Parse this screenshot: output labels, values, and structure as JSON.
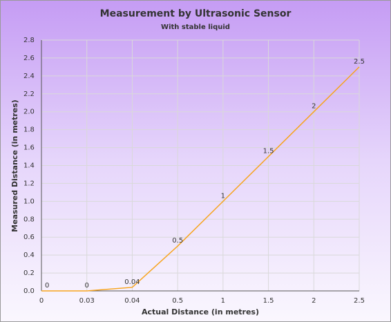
{
  "chart_data": {
    "type": "line",
    "title": "Measurement by Ultrasonic Sensor",
    "subtitle": "With stable liquid",
    "x_label": "Actual Distance (in metres)",
    "y_label": "Measured Distance (in metres)",
    "categories": [
      "0",
      "0.03",
      "0.04",
      "0.5",
      "1",
      "1.5",
      "2",
      "2.5"
    ],
    "values": [
      0,
      0,
      0.04,
      0.5,
      1,
      1.5,
      2,
      2.5
    ],
    "color": "#f7a41d",
    "ylim": [
      0,
      2.8
    ],
    "yticks": [
      {
        "value": 0,
        "label": "0.0"
      },
      0.2,
      0.4,
      0.6,
      0.8,
      {
        "value": 1,
        "label": "1.0"
      },
      1.2,
      1.4,
      1.6,
      1.8,
      {
        "value": 2,
        "label": "2.0"
      },
      2.2,
      2.4,
      2.6,
      2.8
    ],
    "grid": true
  }
}
